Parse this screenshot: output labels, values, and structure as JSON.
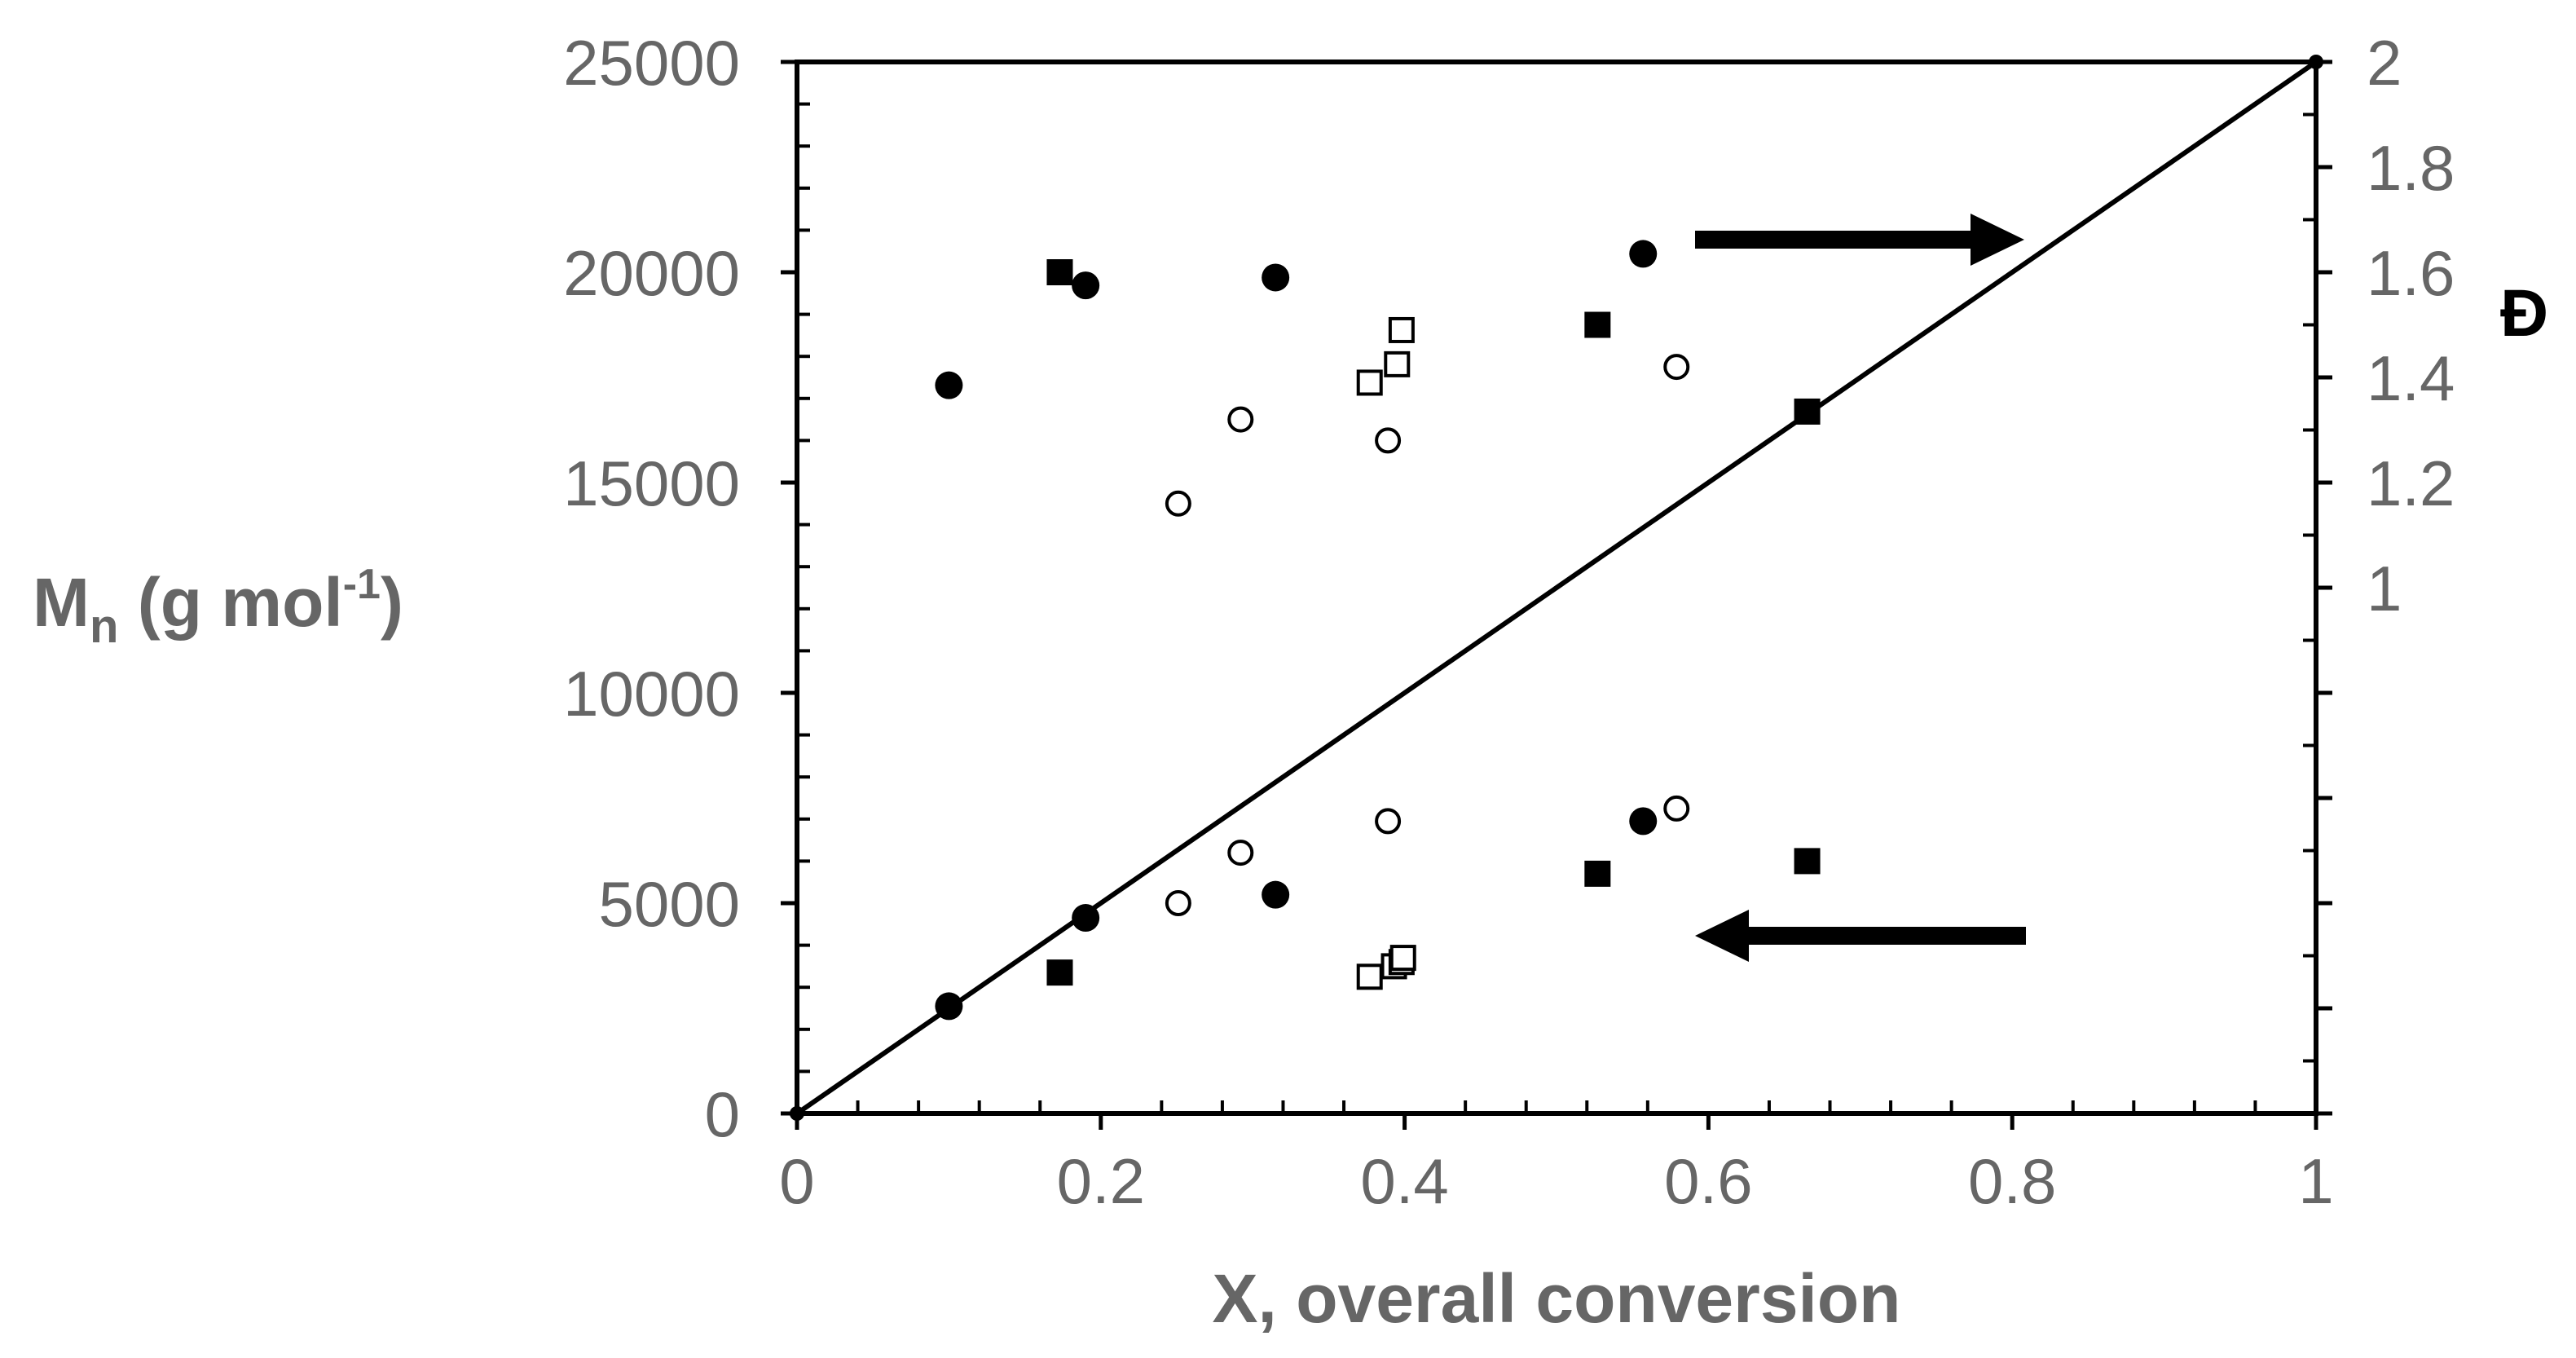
{
  "chart_data": {
    "type": "scatter",
    "xlabel": "X, overall conversion",
    "ylabel": {
      "main": "M",
      "sub": "n",
      "unit_open": " (g mol",
      "sup": "-1",
      "unit_close": ")"
    },
    "y2label": "Đ",
    "xlim": [
      0,
      1
    ],
    "ylim": [
      0,
      25000
    ],
    "y2lim": [
      0,
      2
    ],
    "x_ticks": [
      "0",
      "0.2",
      "0.4",
      "0.6",
      "0.8",
      "1"
    ],
    "x_tick_values": [
      0,
      0.2,
      0.4,
      0.6,
      0.8,
      1
    ],
    "y_ticks": [
      "0",
      "5000",
      "10000",
      "15000",
      "20000",
      "25000"
    ],
    "y_tick_values": [
      0,
      5000,
      10000,
      15000,
      20000,
      25000
    ],
    "y2_ticks": [
      "1",
      "1.2",
      "1.4",
      "1.6",
      "1.8",
      "2"
    ],
    "y2_tick_values": [
      1,
      1.2,
      1.4,
      1.6,
      1.8,
      2
    ],
    "theory_line": {
      "x": [
        0,
        1
      ],
      "y": [
        0,
        25000
      ]
    },
    "series": [
      {
        "marker": "filled-circle",
        "axis": "left",
        "x": [
          0.1,
          0.19,
          0.315,
          0.557
        ],
        "y": [
          2550,
          4650,
          5200,
          6950
        ]
      },
      {
        "marker": "filled-square",
        "axis": "left",
        "x": [
          0.173,
          0.527,
          0.665
        ],
        "y": [
          3350,
          5700,
          6000
        ]
      },
      {
        "marker": "open-circle",
        "axis": "left",
        "x": [
          0.251,
          0.292,
          0.389,
          0.579
        ],
        "y": [
          5000,
          6200,
          6950,
          7250
        ]
      },
      {
        "marker": "open-square",
        "axis": "left",
        "x": [
          0.377,
          0.393,
          0.398,
          0.399
        ],
        "y": [
          3250,
          3500,
          3600,
          3700
        ]
      },
      {
        "marker": "filled-circle",
        "axis": "right",
        "x": [
          0.1,
          0.19,
          0.315,
          0.557
        ],
        "y": [
          1.385,
          1.575,
          1.59,
          1.635
        ]
      },
      {
        "marker": "filled-square",
        "axis": "right",
        "x": [
          0.173,
          0.527,
          0.665
        ],
        "y": [
          1.6,
          1.5,
          1.335
        ]
      },
      {
        "marker": "open-circle",
        "axis": "right",
        "x": [
          0.251,
          0.292,
          0.389,
          0.579
        ],
        "y": [
          1.16,
          1.32,
          1.28,
          1.42
        ]
      },
      {
        "marker": "open-square",
        "axis": "right",
        "x": [
          0.377,
          0.395,
          0.398
        ],
        "y": [
          1.39,
          1.425,
          1.49
        ]
      }
    ],
    "arrows": [
      {
        "direction": "right",
        "points_to": "right-axis"
      },
      {
        "direction": "left",
        "points_to": "left-axis"
      }
    ],
    "grid": false,
    "legend": "none",
    "colors": {
      "axis": "#000000",
      "tick_text": "#666666",
      "marker": "#000000"
    }
  }
}
